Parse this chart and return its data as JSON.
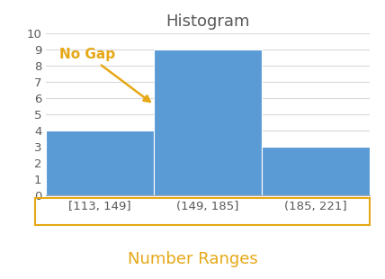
{
  "title": "Histogram",
  "title_color": "#595959",
  "title_fontsize": 13,
  "categories": [
    "[113, 149]",
    "(149, 185]",
    "(185, 221]"
  ],
  "values": [
    4,
    9,
    3
  ],
  "bar_color": "#5B9BD5",
  "bar_edgecolor": "white",
  "ylim": [
    0,
    10
  ],
  "yticks": [
    0,
    1,
    2,
    3,
    4,
    5,
    6,
    7,
    8,
    9,
    10
  ],
  "xlabel": "Number Ranges",
  "xlabel_color": "#E6A817",
  "xlabel_fontsize": 13,
  "tick_label_fontsize": 9.5,
  "tick_color": "#595959",
  "annotation_text": "No Gap",
  "annotation_color": "#E6A817",
  "annotation_fontsize": 11,
  "grid_color": "#D9D9D9",
  "xlabel_box_color": "#E6A817",
  "bg_color": "#FFFFFF"
}
